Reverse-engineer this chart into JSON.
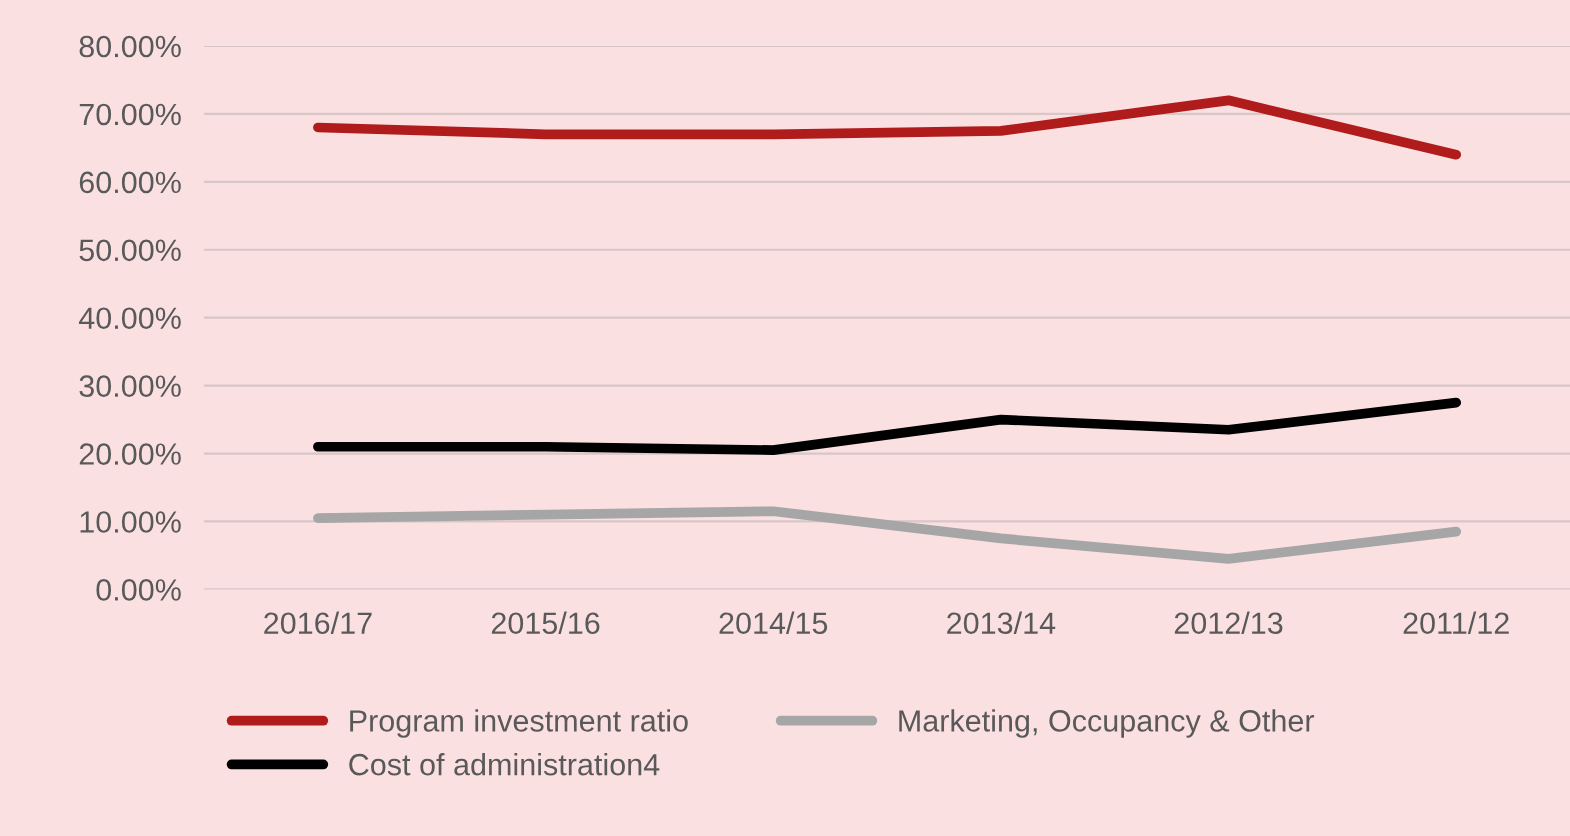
{
  "chart_data": {
    "type": "line",
    "categories": [
      "2016/17",
      "2015/16",
      "2014/15",
      "2013/14",
      "2012/13",
      "2011/12"
    ],
    "series": [
      {
        "name": "Program investment ratio",
        "color": "#b01c1c",
        "values": [
          68,
          67,
          67,
          67.5,
          72,
          64
        ]
      },
      {
        "name": "Cost of administration4",
        "color": "#000000",
        "values": [
          21,
          21,
          20.5,
          25,
          23.5,
          27.5
        ]
      },
      {
        "name": "Marketing, Occupancy & Other",
        "color": "#a6a6a6",
        "values": [
          10.5,
          11,
          11.5,
          7.5,
          4.5,
          8.5
        ]
      }
    ],
    "ylim": [
      0,
      80
    ],
    "yticks": [
      {
        "value": 0,
        "label": "0.00%"
      },
      {
        "value": 10,
        "label": "10.00%"
      },
      {
        "value": 20,
        "label": "20.00%"
      },
      {
        "value": 30,
        "label": "30.00%"
      },
      {
        "value": 40,
        "label": "40.00%"
      },
      {
        "value": 50,
        "label": "50.00%"
      },
      {
        "value": 60,
        "label": "60.00%"
      },
      {
        "value": 70,
        "label": "70.00%"
      },
      {
        "value": 80,
        "label": "80.00%"
      }
    ],
    "grid": "y",
    "legend": "bottom",
    "marker": "none",
    "line_style": "solid"
  }
}
